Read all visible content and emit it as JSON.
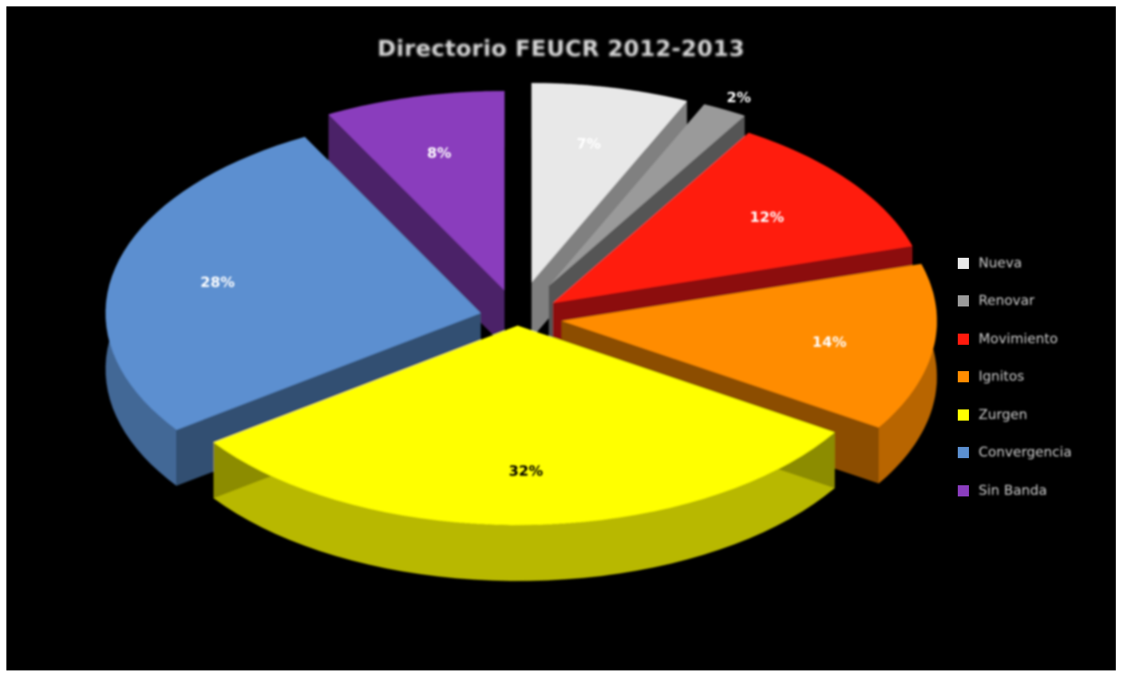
{
  "chart_data": {
    "type": "pie",
    "title": "Directorio FEUCR 2012-2013",
    "legend_position": "right",
    "categories": [
      "Nueva",
      "Renovar",
      "Movimiento",
      "Ignitos",
      "Zurgen",
      "Convergencia",
      "Sin Banda"
    ],
    "values": [
      7,
      2,
      12,
      14,
      32,
      28,
      8
    ],
    "labels": [
      "7%",
      "2%",
      "12%",
      "14%",
      "32%",
      "28%",
      "8%"
    ],
    "colors": [
      "#e8e8e8",
      "#9a9a9a",
      "#ff1a0d",
      "#ff8c00",
      "#ffff00",
      "#5b8fd0",
      "#8a3dbd"
    ]
  }
}
